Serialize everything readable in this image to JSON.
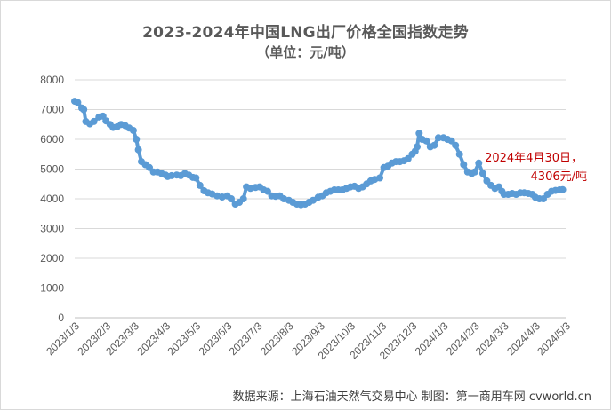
{
  "title": "2023-2024年中国LNG出厂价格全国指数走势",
  "subtitle": "（单位：元/吨）",
  "source": "数据来源：上海石油天然气交易中心 制图：第一商用车网 cvworld.cn",
  "annotation": {
    "line1": "2024年4月30日，",
    "line2": "4306元/吨"
  },
  "colors": {
    "line": "#5b9bd5",
    "annotation": "#c00000",
    "grid": "#d9d9d9"
  },
  "chart_data": {
    "type": "line",
    "title": "2023-2024年中国LNG出厂价格全国指数走势",
    "subtitle": "（单位：元/吨）",
    "ylim": [
      0,
      8000
    ],
    "y_ticks": [
      0,
      1000,
      2000,
      3000,
      4000,
      5000,
      6000,
      7000,
      8000
    ],
    "x_ticks": [
      "2023/1/3",
      "2023/2/3",
      "2023/3/3",
      "2023/4/3",
      "2023/5/3",
      "2023/6/3",
      "2023/7/3",
      "2023/8/3",
      "2023/9/3",
      "2023/10/3",
      "2023/11/3",
      "2023/12/3",
      "2024/1/3",
      "2024/2/3",
      "2024/3/3",
      "2024/4/3",
      "2024/5/3"
    ],
    "grid": "horizontal",
    "legend": "none",
    "series": [
      {
        "values": [
          [
            "2023/1/3",
            7280
          ],
          [
            "2023/1/6",
            7240
          ],
          [
            "2023/1/10",
            7050
          ],
          [
            "2023/1/12",
            7000
          ],
          [
            "2023/1/14",
            6600
          ],
          [
            "2023/1/18",
            6520
          ],
          [
            "2023/1/22",
            6600
          ],
          [
            "2023/1/27",
            6750
          ],
          [
            "2023/1/31",
            6780
          ],
          [
            "2023/2/3",
            6620
          ],
          [
            "2023/2/7",
            6500
          ],
          [
            "2023/2/10",
            6400
          ],
          [
            "2023/2/14",
            6420
          ],
          [
            "2023/2/18",
            6500
          ],
          [
            "2023/2/22",
            6460
          ],
          [
            "2023/2/26",
            6380
          ],
          [
            "2023/3/2",
            6300
          ],
          [
            "2023/3/5",
            6000
          ],
          [
            "2023/3/7",
            5650
          ],
          [
            "2023/3/10",
            5250
          ],
          [
            "2023/3/14",
            5150
          ],
          [
            "2023/3/18",
            5050
          ],
          [
            "2023/3/22",
            4900
          ],
          [
            "2023/3/26",
            4900
          ],
          [
            "2023/3/30",
            4850
          ],
          [
            "2023/4/3",
            4800
          ],
          [
            "2023/4/5",
            4750
          ],
          [
            "2023/4/9",
            4780
          ],
          [
            "2023/4/14",
            4800
          ],
          [
            "2023/4/18",
            4780
          ],
          [
            "2023/4/22",
            4850
          ],
          [
            "2023/4/26",
            4800
          ],
          [
            "2023/4/30",
            4720
          ],
          [
            "2023/5/3",
            4700
          ],
          [
            "2023/5/7",
            4450
          ],
          [
            "2023/5/11",
            4270
          ],
          [
            "2023/5/15",
            4200
          ],
          [
            "2023/5/19",
            4160
          ],
          [
            "2023/5/24",
            4100
          ],
          [
            "2023/5/29",
            4060
          ],
          [
            "2023/6/3",
            4100
          ],
          [
            "2023/6/7",
            4000
          ],
          [
            "2023/6/11",
            3820
          ],
          [
            "2023/6/15",
            3880
          ],
          [
            "2023/6/19",
            4000
          ],
          [
            "2023/6/22",
            4400
          ],
          [
            "2023/6/26",
            4350
          ],
          [
            "2023/7/1",
            4380
          ],
          [
            "2023/7/5",
            4400
          ],
          [
            "2023/7/9",
            4300
          ],
          [
            "2023/7/13",
            4250
          ],
          [
            "2023/7/17",
            4100
          ],
          [
            "2023/7/21",
            4080
          ],
          [
            "2023/7/25",
            4100
          ],
          [
            "2023/7/29",
            4000
          ],
          [
            "2023/8/3",
            3950
          ],
          [
            "2023/8/7",
            3880
          ],
          [
            "2023/8/11",
            3820
          ],
          [
            "2023/8/15",
            3800
          ],
          [
            "2023/8/19",
            3820
          ],
          [
            "2023/8/23",
            3880
          ],
          [
            "2023/8/27",
            3950
          ],
          [
            "2023/9/1",
            4050
          ],
          [
            "2023/9/5",
            4100
          ],
          [
            "2023/9/9",
            4200
          ],
          [
            "2023/9/13",
            4250
          ],
          [
            "2023/9/17",
            4300
          ],
          [
            "2023/9/21",
            4300
          ],
          [
            "2023/9/25",
            4300
          ],
          [
            "2023/9/29",
            4350
          ],
          [
            "2023/10/3",
            4400
          ],
          [
            "2023/10/7",
            4420
          ],
          [
            "2023/10/11",
            4350
          ],
          [
            "2023/10/15",
            4400
          ],
          [
            "2023/10/19",
            4500
          ],
          [
            "2023/10/23",
            4600
          ],
          [
            "2023/10/27",
            4650
          ],
          [
            "2023/11/1",
            4700
          ],
          [
            "2023/11/5",
            5050
          ],
          [
            "2023/11/9",
            5100
          ],
          [
            "2023/11/13",
            5200
          ],
          [
            "2023/11/17",
            5250
          ],
          [
            "2023/11/21",
            5250
          ],
          [
            "2023/11/25",
            5280
          ],
          [
            "2023/11/29",
            5350
          ],
          [
            "2023/12/3",
            5500
          ],
          [
            "2023/12/6",
            5600
          ],
          [
            "2023/12/8",
            5750
          ],
          [
            "2023/12/10",
            6200
          ],
          [
            "2023/12/13",
            6000
          ],
          [
            "2023/12/17",
            5950
          ],
          [
            "2023/12/21",
            5750
          ],
          [
            "2023/12/25",
            5800
          ],
          [
            "2023/12/29",
            6050
          ],
          [
            "2024/1/3",
            6050
          ],
          [
            "2024/1/7",
            6000
          ],
          [
            "2024/1/11",
            5950
          ],
          [
            "2024/1/15",
            5800
          ],
          [
            "2024/1/19",
            5500
          ],
          [
            "2024/1/23",
            5150
          ],
          [
            "2024/1/27",
            4900
          ],
          [
            "2024/1/31",
            4850
          ],
          [
            "2024/2/3",
            4900
          ],
          [
            "2024/2/7",
            5200
          ],
          [
            "2024/2/11",
            4850
          ],
          [
            "2024/2/15",
            4600
          ],
          [
            "2024/2/19",
            4450
          ],
          [
            "2024/2/23",
            4350
          ],
          [
            "2024/2/27",
            4400
          ],
          [
            "2024/3/1",
            4250
          ],
          [
            "2024/3/3",
            4150
          ],
          [
            "2024/3/7",
            4150
          ],
          [
            "2024/3/11",
            4180
          ],
          [
            "2024/3/15",
            4150
          ],
          [
            "2024/3/19",
            4200
          ],
          [
            "2024/3/23",
            4200
          ],
          [
            "2024/3/27",
            4180
          ],
          [
            "2024/3/31",
            4150
          ],
          [
            "2024/4/3",
            4050
          ],
          [
            "2024/4/7",
            4000
          ],
          [
            "2024/4/11",
            4000
          ],
          [
            "2024/4/15",
            4150
          ],
          [
            "2024/4/19",
            4250
          ],
          [
            "2024/4/23",
            4280
          ],
          [
            "2024/4/27",
            4300
          ],
          [
            "2024/4/30",
            4306
          ]
        ]
      }
    ]
  }
}
